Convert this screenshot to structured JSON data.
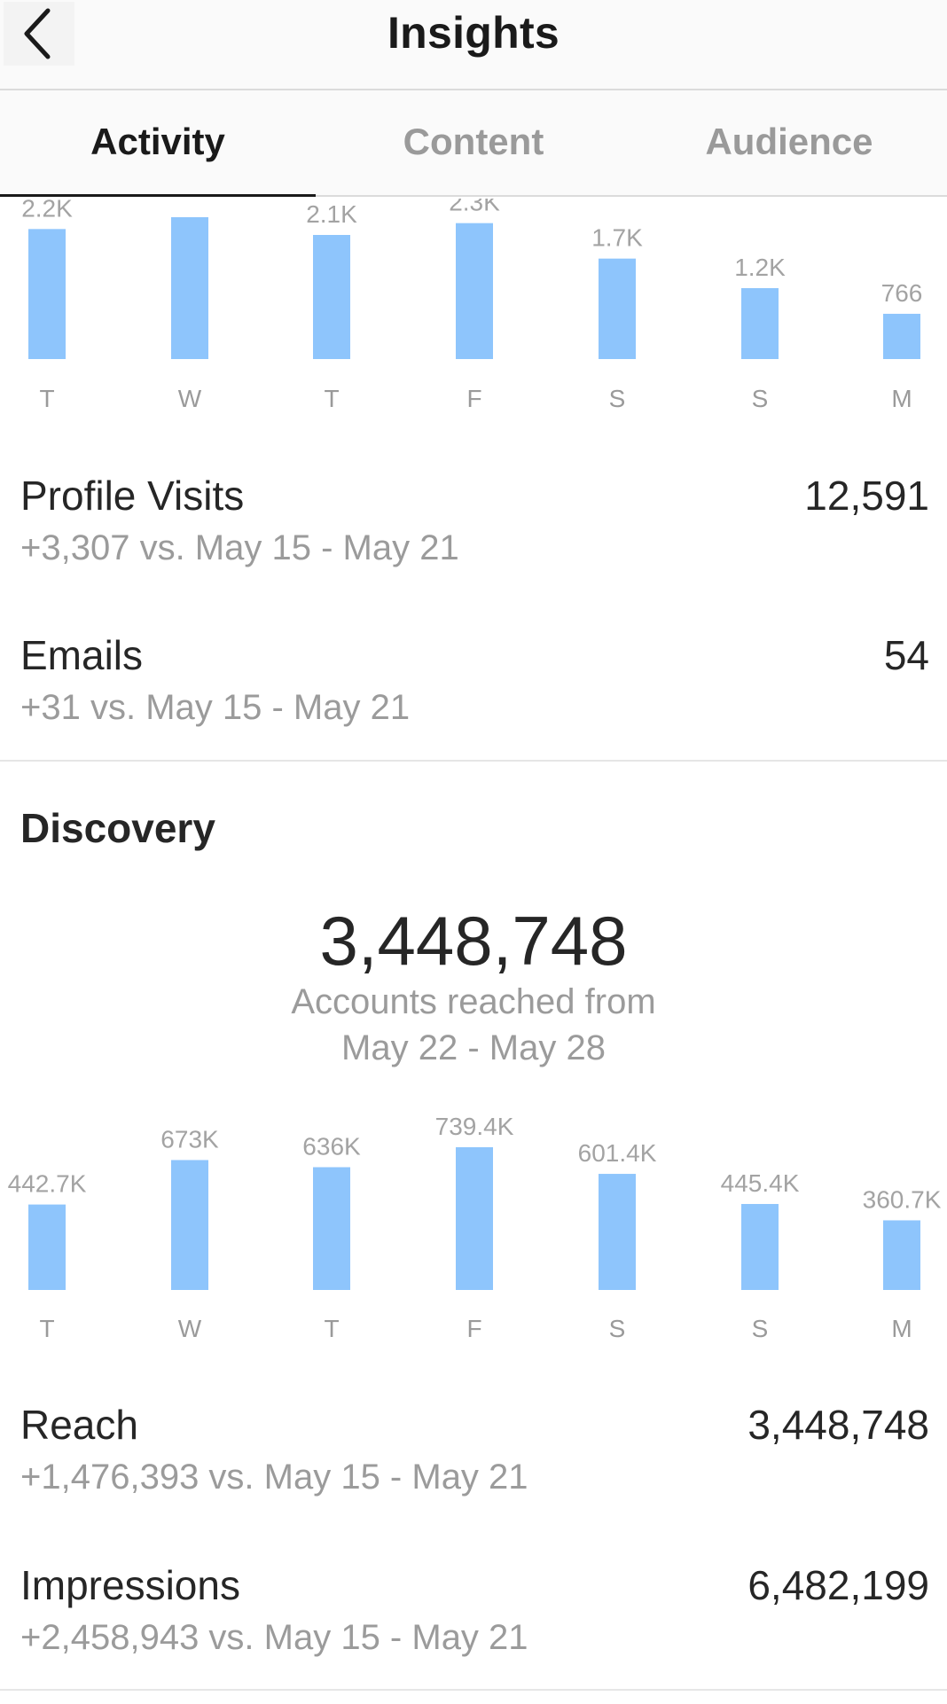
{
  "header": {
    "title": "Insights",
    "back_icon": "chevron-left-icon"
  },
  "tabs": [
    {
      "label": "Activity",
      "active": true
    },
    {
      "label": "Content",
      "active": false
    },
    {
      "label": "Audience",
      "active": false
    }
  ],
  "colors": {
    "bar": "#8ec5fc",
    "text": "#262626",
    "muted": "#9b9b9b"
  },
  "interactions_chart": {
    "chart_data": {
      "type": "bar",
      "categories": [
        "T",
        "W",
        "T",
        "F",
        "S",
        "S",
        "M"
      ],
      "values": [
        2200,
        2400,
        2100,
        2300,
        1700,
        1200,
        766
      ],
      "labels": [
        "2.2K",
        "",
        "2.1K",
        "2.3K",
        "1.7K",
        "1.2K",
        "766"
      ]
    }
  },
  "profile_visits": {
    "label": "Profile Visits",
    "value": "12,591",
    "change": "+3,307 vs. May 15 - May 21"
  },
  "emails": {
    "label": "Emails",
    "value": "54",
    "change": "+31 vs. May 15 - May 21"
  },
  "discovery": {
    "title": "Discovery",
    "accounts_reached": "3,448,748",
    "accounts_reached_label": "Accounts reached from",
    "date_range": "May 22 - May 28"
  },
  "reach_chart": {
    "chart_data": {
      "type": "bar",
      "categories": [
        "T",
        "W",
        "T",
        "F",
        "S",
        "S",
        "M"
      ],
      "values": [
        442.7,
        673,
        636,
        739.4,
        601.4,
        445.4,
        360.7
      ],
      "labels": [
        "442.7K",
        "673K",
        "636K",
        "739.4K",
        "601.4K",
        "445.4K",
        "360.7K"
      ]
    }
  },
  "reach": {
    "label": "Reach",
    "value": "3,448,748",
    "change": "+1,476,393 vs. May 15 - May 21"
  },
  "impressions": {
    "label": "Impressions",
    "value": "6,482,199",
    "change": "+2,458,943 vs. May 15 - May 21"
  }
}
